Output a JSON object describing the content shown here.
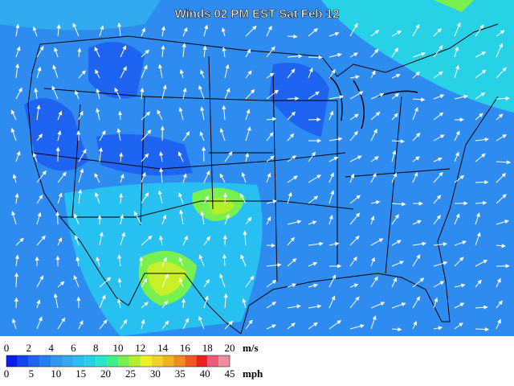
{
  "title": "Winds 02 PM EST Sat Feb 12",
  "legend": {
    "units_ms": "m/s",
    "ticks_ms": [
      0,
      2,
      4,
      6,
      8,
      10,
      12,
      14,
      16,
      18,
      20
    ],
    "units_mph": "mph",
    "ticks_mph": [
      0,
      5,
      10,
      15,
      20,
      25,
      30,
      35,
      40,
      45
    ],
    "colors": [
      "#0a1ef0",
      "#1446f0",
      "#1e64f0",
      "#2880f0",
      "#3296f0",
      "#32aaf0",
      "#28c0f0",
      "#28d2e6",
      "#28e6c8",
      "#3cf08c",
      "#78f050",
      "#b4f028",
      "#f0f028",
      "#f0d228",
      "#f0b41e",
      "#f08c1e",
      "#f05a1e",
      "#f01e1e",
      "#f05a78",
      "#f08ca0"
    ]
  }
}
